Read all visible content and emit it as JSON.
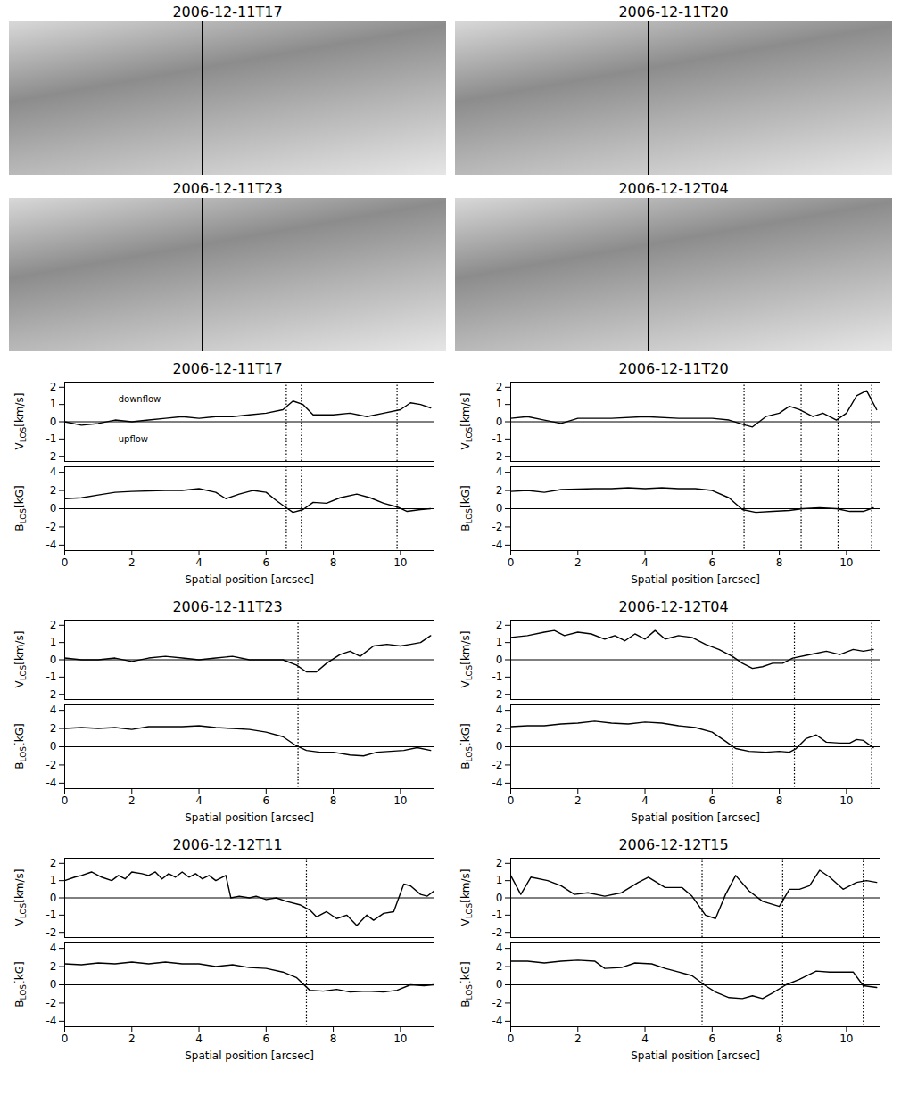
{
  "images": [
    {
      "title": "2006-12-11T17"
    },
    {
      "title": "2006-12-11T20"
    },
    {
      "title": "2006-12-11T23"
    },
    {
      "title": "2006-12-12T04"
    }
  ],
  "chart_data": [
    {
      "type": "line",
      "title": "2006-12-11T17",
      "color": "#000000",
      "line_style": "dotted",
      "xlabel": "Spatial position [arcsec]",
      "xlim": [
        0,
        11
      ],
      "xticks": [
        0,
        2,
        4,
        6,
        8,
        10
      ],
      "reference_line": 0,
      "dotted_lines": [
        6.6,
        7.05,
        9.9
      ],
      "subplots": [
        {
          "ylabel": [
            "V",
            "LOS",
            "[km/s]"
          ],
          "ylim": [
            -2.3,
            2.3
          ],
          "yticks": [
            -2,
            -1,
            0,
            1,
            2
          ],
          "x": [
            0,
            0.5,
            1,
            1.5,
            2,
            2.5,
            3,
            3.5,
            4,
            4.5,
            5,
            5.5,
            6,
            6.5,
            6.8,
            7.1,
            7.4,
            8,
            8.5,
            9,
            9.5,
            10,
            10.3,
            10.6,
            10.9
          ],
          "values": [
            0,
            -0.2,
            -0.1,
            0.1,
            0,
            0.1,
            0.2,
            0.3,
            0.2,
            0.3,
            0.3,
            0.4,
            0.5,
            0.7,
            1.2,
            1.0,
            0.4,
            0.4,
            0.5,
            0.3,
            0.5,
            0.7,
            1.1,
            1.0,
            0.8
          ],
          "annotations": [
            {
              "text": "downflow",
              "x": 1.6,
              "y": 1.3
            },
            {
              "text": "upflow",
              "x": 1.6,
              "y": -1.0
            }
          ]
        },
        {
          "ylabel": [
            "B",
            "LOS",
            "[kG]"
          ],
          "ylim": [
            -4.6,
            4.6
          ],
          "yticks": [
            -4,
            -2,
            0,
            2,
            4
          ],
          "x": [
            0,
            0.5,
            1,
            1.5,
            2,
            3,
            3.5,
            4,
            4.5,
            4.8,
            5.2,
            5.6,
            6,
            6.3,
            6.6,
            6.8,
            7.1,
            7.4,
            7.8,
            8.2,
            8.7,
            9.1,
            9.5,
            9.9,
            10.2,
            10.6,
            10.9
          ],
          "values": [
            1.1,
            1.2,
            1.5,
            1.8,
            1.9,
            2.0,
            2.0,
            2.2,
            1.8,
            1.1,
            1.6,
            2.0,
            1.8,
            0.9,
            0.1,
            -0.4,
            -0.1,
            0.7,
            0.6,
            1.2,
            1.6,
            1.2,
            0.6,
            0.2,
            -0.3,
            -0.1,
            0
          ]
        }
      ]
    },
    {
      "type": "line",
      "title": "2006-12-11T20",
      "color": "#000000",
      "line_style": "dotted",
      "xlabel": "Spatial position [arcsec]",
      "xlim": [
        0,
        11
      ],
      "xticks": [
        0,
        2,
        4,
        6,
        8,
        10
      ],
      "reference_line": 0,
      "dotted_lines": [
        6.95,
        8.65,
        9.75,
        10.75
      ],
      "subplots": [
        {
          "ylabel": [
            "V",
            "LOS",
            "[km/s]"
          ],
          "ylim": [
            -2.3,
            2.3
          ],
          "yticks": [
            -2,
            -1,
            0,
            1,
            2
          ],
          "x": [
            0,
            0.5,
            1,
            1.5,
            2,
            3,
            4,
            5,
            6,
            6.5,
            7,
            7.2,
            7.6,
            8,
            8.3,
            8.6,
            9,
            9.3,
            9.7,
            10,
            10.3,
            10.6,
            10.9
          ],
          "values": [
            0.2,
            0.3,
            0.1,
            -0.1,
            0.2,
            0.2,
            0.3,
            0.2,
            0.2,
            0.1,
            -0.2,
            -0.3,
            0.3,
            0.5,
            0.9,
            0.7,
            0.3,
            0.5,
            0.1,
            0.5,
            1.5,
            1.8,
            0.7
          ]
        },
        {
          "ylabel": [
            "B",
            "LOS",
            "[kG]"
          ],
          "ylim": [
            -4.6,
            4.6
          ],
          "yticks": [
            -4,
            -2,
            0,
            2,
            4
          ],
          "x": [
            0,
            0.5,
            1,
            1.5,
            2.5,
            3,
            3.5,
            4,
            4.5,
            5,
            5.5,
            6,
            6.5,
            6.9,
            7.3,
            7.8,
            8.3,
            8.7,
            9.2,
            9.7,
            10.1,
            10.5,
            10.8
          ],
          "values": [
            1.9,
            2.0,
            1.8,
            2.1,
            2.2,
            2.2,
            2.3,
            2.2,
            2.3,
            2.2,
            2.2,
            2.0,
            1.2,
            -0.1,
            -0.4,
            -0.3,
            -0.2,
            0,
            0.1,
            0,
            -0.3,
            -0.3,
            0.1
          ]
        }
      ]
    },
    {
      "type": "line",
      "title": "2006-12-11T23",
      "color": "#000000",
      "line_style": "dotted",
      "xlabel": "Spatial position [arcsec]",
      "xlim": [
        0,
        11
      ],
      "xticks": [
        0,
        2,
        4,
        6,
        8,
        10
      ],
      "reference_line": 0,
      "dotted_lines": [
        6.95
      ],
      "subplots": [
        {
          "ylabel": [
            "V",
            "LOS",
            "[km/s]"
          ],
          "ylim": [
            -2.3,
            2.3
          ],
          "yticks": [
            -2,
            -1,
            0,
            1,
            2
          ],
          "x": [
            0,
            0.5,
            1,
            1.5,
            2,
            2.5,
            3,
            3.5,
            4,
            4.5,
            5,
            5.5,
            6,
            6.5,
            6.9,
            7.2,
            7.5,
            7.8,
            8.2,
            8.5,
            8.8,
            9.2,
            9.6,
            10,
            10.3,
            10.6,
            10.9
          ],
          "values": [
            0.1,
            0,
            0,
            0.1,
            -0.1,
            0.1,
            0.2,
            0.1,
            0,
            0.1,
            0.2,
            0,
            0,
            0,
            -0.3,
            -0.7,
            -0.7,
            -0.2,
            0.3,
            0.5,
            0.2,
            0.8,
            0.9,
            0.8,
            0.9,
            1.0,
            1.4
          ]
        },
        {
          "ylabel": [
            "B",
            "LOS",
            "[kG]"
          ],
          "ylim": [
            -4.6,
            4.6
          ],
          "yticks": [
            -4,
            -2,
            0,
            2,
            4
          ],
          "x": [
            0,
            0.5,
            1,
            1.5,
            2,
            2.5,
            3,
            3.5,
            4,
            4.5,
            5,
            5.5,
            6,
            6.5,
            6.9,
            7.2,
            7.6,
            8,
            8.5,
            8.9,
            9.3,
            9.7,
            10.1,
            10.5,
            10.9
          ],
          "values": [
            2.0,
            2.1,
            2.0,
            2.1,
            1.9,
            2.2,
            2.2,
            2.2,
            2.3,
            2.1,
            2.0,
            1.9,
            1.6,
            1.1,
            0.1,
            -0.4,
            -0.6,
            -0.6,
            -0.9,
            -1.0,
            -0.6,
            -0.5,
            -0.4,
            -0.1,
            -0.4
          ]
        }
      ]
    },
    {
      "type": "line",
      "title": "2006-12-12T04",
      "color": "#000000",
      "line_style": "dotted",
      "xlabel": "Spatial position [arcsec]",
      "xlim": [
        0,
        11
      ],
      "xticks": [
        0,
        2,
        4,
        6,
        8,
        10
      ],
      "reference_line": 0,
      "dotted_lines": [
        6.6,
        8.45,
        10.75
      ],
      "subplots": [
        {
          "ylabel": [
            "V",
            "LOS",
            "[km/s]"
          ],
          "ylim": [
            -2.3,
            2.3
          ],
          "yticks": [
            -2,
            -1,
            0,
            1,
            2
          ],
          "x": [
            0,
            0.5,
            1,
            1.3,
            1.6,
            2,
            2.4,
            2.8,
            3.1,
            3.4,
            3.7,
            4,
            4.3,
            4.6,
            5,
            5.4,
            5.8,
            6.2,
            6.6,
            6.9,
            7.2,
            7.5,
            7.8,
            8.1,
            8.4,
            8.9,
            9.4,
            9.8,
            10.2,
            10.5,
            10.8
          ],
          "values": [
            1.3,
            1.4,
            1.6,
            1.7,
            1.4,
            1.6,
            1.5,
            1.2,
            1.4,
            1.1,
            1.5,
            1.2,
            1.7,
            1.2,
            1.4,
            1.3,
            0.9,
            0.6,
            0.2,
            -0.2,
            -0.5,
            -0.4,
            -0.2,
            -0.2,
            0.1,
            0.3,
            0.5,
            0.3,
            0.6,
            0.5,
            0.6
          ]
        },
        {
          "ylabel": [
            "B",
            "LOS",
            "[kG]"
          ],
          "ylim": [
            -4.6,
            4.6
          ],
          "yticks": [
            -4,
            -2,
            0,
            2,
            4
          ],
          "x": [
            0,
            0.5,
            1,
            1.5,
            2,
            2.5,
            3,
            3.5,
            4,
            4.5,
            5,
            5.5,
            6,
            6.4,
            6.7,
            7.1,
            7.6,
            8,
            8.3,
            8.5,
            8.8,
            9.1,
            9.4,
            9.8,
            10.1,
            10.3,
            10.5,
            10.8
          ],
          "values": [
            2.2,
            2.3,
            2.3,
            2.5,
            2.6,
            2.8,
            2.6,
            2.5,
            2.7,
            2.6,
            2.3,
            2.1,
            1.6,
            0.6,
            -0.2,
            -0.5,
            -0.6,
            -0.5,
            -0.6,
            -0.2,
            0.9,
            1.3,
            0.5,
            0.4,
            0.4,
            0.8,
            0.7,
            -0.1
          ]
        }
      ]
    },
    {
      "type": "line",
      "title": "2006-12-12T11",
      "color": "#000000",
      "line_style": "dotted",
      "xlabel": "Spatial position [arcsec]",
      "xlim": [
        0,
        11
      ],
      "xticks": [
        0,
        2,
        4,
        6,
        8,
        10
      ],
      "reference_line": 0,
      "dotted_lines": [
        7.2
      ],
      "subplots": [
        {
          "ylabel": [
            "V",
            "LOS",
            "[km/s]"
          ],
          "ylim": [
            -2.3,
            2.3
          ],
          "yticks": [
            -2,
            -1,
            0,
            1,
            2
          ],
          "x": [
            0,
            0.3,
            0.5,
            0.8,
            1.1,
            1.4,
            1.6,
            1.8,
            2,
            2.3,
            2.5,
            2.7,
            2.9,
            3.1,
            3.3,
            3.5,
            3.7,
            3.9,
            4.1,
            4.3,
            4.5,
            4.8,
            4.95,
            5.2,
            5.5,
            5.7,
            6,
            6.3,
            6.6,
            7,
            7.3,
            7.5,
            7.8,
            8.1,
            8.4,
            8.7,
            9,
            9.2,
            9.5,
            9.8,
            10.1,
            10.3,
            10.6,
            10.8,
            11
          ],
          "values": [
            1.0,
            1.2,
            1.3,
            1.5,
            1.2,
            1.0,
            1.3,
            1.1,
            1.5,
            1.4,
            1.3,
            1.5,
            1.1,
            1.4,
            1.2,
            1.5,
            1.2,
            1.4,
            1.1,
            1.3,
            1.0,
            1.3,
            0.0,
            0.1,
            0.0,
            0.1,
            -0.1,
            0,
            -0.2,
            -0.4,
            -0.7,
            -1.1,
            -0.8,
            -1.2,
            -1.0,
            -1.6,
            -1.0,
            -1.3,
            -0.9,
            -0.8,
            0.8,
            0.7,
            0.2,
            0.1,
            0.4
          ]
        },
        {
          "ylabel": [
            "B",
            "LOS",
            "[kG]"
          ],
          "ylim": [
            -4.6,
            4.6
          ],
          "yticks": [
            -4,
            -2,
            0,
            2,
            4
          ],
          "x": [
            0,
            0.5,
            1,
            1.5,
            2,
            2.5,
            3,
            3.5,
            4,
            4.5,
            5,
            5.5,
            6,
            6.5,
            6.9,
            7.3,
            7.7,
            8.1,
            8.5,
            9,
            9.5,
            9.9,
            10.3,
            10.7,
            11
          ],
          "values": [
            2.3,
            2.2,
            2.4,
            2.3,
            2.5,
            2.3,
            2.5,
            2.3,
            2.3,
            2.0,
            2.2,
            1.9,
            1.8,
            1.4,
            0.8,
            -0.6,
            -0.7,
            -0.5,
            -0.8,
            -0.7,
            -0.8,
            -0.6,
            0,
            -0.1,
            0
          ]
        }
      ]
    },
    {
      "type": "line",
      "title": "2006-12-12T15",
      "color": "#000000",
      "line_style": "dotted",
      "xlabel": "Spatial position [arcsec]",
      "xlim": [
        0,
        11
      ],
      "xticks": [
        0,
        2,
        4,
        6,
        8,
        10
      ],
      "reference_line": 0,
      "dotted_lines": [
        5.7,
        8.1,
        10.5
      ],
      "subplots": [
        {
          "ylabel": [
            "V",
            "LOS",
            "[km/s]"
          ],
          "ylim": [
            -2.3,
            2.3
          ],
          "yticks": [
            -2,
            -1,
            0,
            1,
            2
          ],
          "x": [
            0,
            0.3,
            0.6,
            1.1,
            1.5,
            1.9,
            2.3,
            2.8,
            3.3,
            3.8,
            4.1,
            4.6,
            5.1,
            5.4,
            5.8,
            6.1,
            6.4,
            6.7,
            7.1,
            7.5,
            8,
            8.3,
            8.6,
            8.9,
            9.2,
            9.5,
            9.9,
            10.3,
            10.6,
            10.9
          ],
          "values": [
            1.3,
            0.2,
            1.2,
            1.0,
            0.7,
            0.2,
            0.3,
            0.1,
            0.3,
            0.9,
            1.2,
            0.6,
            0.6,
            0.1,
            -1.0,
            -1.2,
            0.2,
            1.3,
            0.4,
            -0.2,
            -0.5,
            0.5,
            0.5,
            0.7,
            1.6,
            1.2,
            0.5,
            0.9,
            1.0,
            0.9
          ]
        },
        {
          "ylabel": [
            "B",
            "LOS",
            "[kG]"
          ],
          "ylim": [
            -4.6,
            4.6
          ],
          "yticks": [
            -4,
            -2,
            0,
            2,
            4
          ],
          "x": [
            0,
            0.5,
            1,
            1.5,
            2,
            2.5,
            2.8,
            3.3,
            3.7,
            4.2,
            4.6,
            5,
            5.4,
            5.8,
            6.1,
            6.5,
            6.9,
            7.2,
            7.5,
            7.8,
            8.2,
            8.6,
            9.1,
            9.5,
            9.9,
            10.2,
            10.5,
            10.9
          ],
          "values": [
            2.6,
            2.6,
            2.4,
            2.6,
            2.7,
            2.6,
            1.8,
            1.9,
            2.4,
            2.3,
            1.8,
            1.4,
            1.0,
            -0.1,
            -0.8,
            -1.4,
            -1.5,
            -1.2,
            -1.5,
            -0.9,
            0.0,
            0.6,
            1.5,
            1.4,
            1.4,
            1.4,
            -0.1,
            -0.3
          ]
        }
      ]
    }
  ]
}
